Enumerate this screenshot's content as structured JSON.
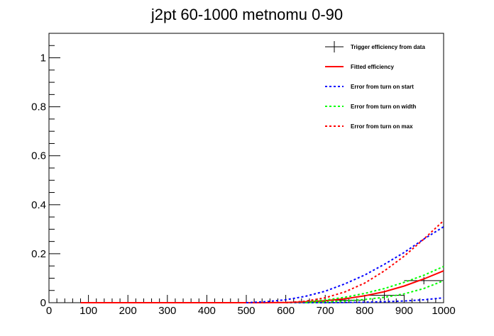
{
  "chart_data": {
    "type": "line",
    "title": "j2pt 60-1000 metnomu 0-90",
    "xlabel": "",
    "ylabel": "",
    "xlim": [
      0,
      1000
    ],
    "ylim": [
      0,
      1.1
    ],
    "x_ticks": [
      0,
      100,
      200,
      300,
      400,
      500,
      600,
      700,
      800,
      900,
      1000
    ],
    "y_ticks": [
      0,
      0.2,
      0.4,
      0.6,
      0.8,
      1
    ],
    "y_tick_labels": [
      "0",
      "0.2",
      "0.4",
      "0.6",
      "0.8",
      "1"
    ],
    "grid": false,
    "legend_position": "top-right",
    "series": [
      {
        "name": "Trigger efficiency from data",
        "kind": "points_with_errors",
        "color": "#000000",
        "points": [
          {
            "x": 80,
            "y": 0.0,
            "xerr": 10,
            "yerr": 0.0
          },
          {
            "x": 100,
            "y": 0.0,
            "xerr": 10,
            "yerr": 0.0
          },
          {
            "x": 120,
            "y": 0.0,
            "xerr": 10,
            "yerr": 0.0
          },
          {
            "x": 140,
            "y": 0.0,
            "xerr": 10,
            "yerr": 0.0
          },
          {
            "x": 160,
            "y": 0.0,
            "xerr": 10,
            "yerr": 0.0
          },
          {
            "x": 180,
            "y": 0.0,
            "xerr": 10,
            "yerr": 0.0
          },
          {
            "x": 200,
            "y": 0.0,
            "xerr": 10,
            "yerr": 0.0
          },
          {
            "x": 220,
            "y": 0.0,
            "xerr": 10,
            "yerr": 0.0
          },
          {
            "x": 240,
            "y": 0.0,
            "xerr": 10,
            "yerr": 0.0
          },
          {
            "x": 260,
            "y": 0.0,
            "xerr": 10,
            "yerr": 0.0
          },
          {
            "x": 280,
            "y": 0.0,
            "xerr": 10,
            "yerr": 0.0
          },
          {
            "x": 300,
            "y": 0.0,
            "xerr": 10,
            "yerr": 0.0
          },
          {
            "x": 320,
            "y": 0.0,
            "xerr": 10,
            "yerr": 0.0
          },
          {
            "x": 340,
            "y": 0.0,
            "xerr": 10,
            "yerr": 0.0
          },
          {
            "x": 360,
            "y": 0.0,
            "xerr": 10,
            "yerr": 0.0
          },
          {
            "x": 380,
            "y": 0.0,
            "xerr": 10,
            "yerr": 0.0
          },
          {
            "x": 400,
            "y": 0.0,
            "xerr": 10,
            "yerr": 0.0
          },
          {
            "x": 420,
            "y": 0.0,
            "xerr": 10,
            "yerr": 0.0
          },
          {
            "x": 440,
            "y": 0.0,
            "xerr": 10,
            "yerr": 0.0
          },
          {
            "x": 460,
            "y": 0.0,
            "xerr": 10,
            "yerr": 0.0
          },
          {
            "x": 480,
            "y": 0.0,
            "xerr": 10,
            "yerr": 0.0
          },
          {
            "x": 500,
            "y": 0.0,
            "xerr": 10,
            "yerr": 0.0
          },
          {
            "x": 525,
            "y": 0.0,
            "xerr": 15,
            "yerr": 0.0
          },
          {
            "x": 555,
            "y": 0.0,
            "xerr": 15,
            "yerr": 0.0
          },
          {
            "x": 585,
            "y": 0.0,
            "xerr": 15,
            "yerr": 0.0
          },
          {
            "x": 625,
            "y": 0.0,
            "xerr": 25,
            "yerr": 0.0
          },
          {
            "x": 675,
            "y": 0.005,
            "xerr": 25,
            "yerr": 0.005
          },
          {
            "x": 750,
            "y": 0.01,
            "xerr": 50,
            "yerr": 0.01
          },
          {
            "x": 850,
            "y": 0.03,
            "xerr": 50,
            "yerr": 0.02
          },
          {
            "x": 950,
            "y": 0.09,
            "xerr": 50,
            "yerr": 0.015
          }
        ]
      },
      {
        "name": "Fitted efficiency",
        "kind": "line",
        "color": "#ff0000",
        "dashed": false,
        "x": [
          80,
          500,
          550,
          600,
          650,
          700,
          750,
          800,
          850,
          900,
          950,
          1000
        ],
        "y": [
          0.0,
          0.0,
          0.0,
          0.001,
          0.003,
          0.008,
          0.016,
          0.028,
          0.045,
          0.068,
          0.097,
          0.13
        ]
      },
      {
        "name": "Error from turn on start",
        "kind": "line",
        "color": "#0000ff",
        "dashed": true,
        "x": [
          500,
          550,
          600,
          650,
          700,
          750,
          800,
          850,
          900,
          950,
          1000
        ],
        "y": [
          0.0,
          0.004,
          0.012,
          0.026,
          0.047,
          0.077,
          0.113,
          0.157,
          0.205,
          0.26,
          0.31
        ]
      },
      {
        "name": "Error from turn on start (lower)",
        "kind": "line",
        "color": "#0000ff",
        "dashed": true,
        "legend": false,
        "x": [
          600,
          650,
          700,
          750,
          800,
          850,
          900,
          950,
          1000
        ],
        "y": [
          0.0,
          0.0,
          0.0,
          0.001,
          0.002,
          0.004,
          0.007,
          0.012,
          0.02
        ]
      },
      {
        "name": "Error from turn on width",
        "kind": "line",
        "color": "#00ff00",
        "dashed": true,
        "x": [
          600,
          650,
          700,
          750,
          800,
          850,
          900,
          950,
          1000
        ],
        "y": [
          0.0,
          0.004,
          0.011,
          0.022,
          0.038,
          0.058,
          0.083,
          0.112,
          0.148
        ]
      },
      {
        "name": "Error from turn on width (lower)",
        "kind": "line",
        "color": "#00ff00",
        "dashed": true,
        "legend": false,
        "x": [
          650,
          700,
          750,
          800,
          850,
          900,
          950,
          1000
        ],
        "y": [
          0.0,
          0.003,
          0.007,
          0.013,
          0.022,
          0.036,
          0.058,
          0.09
        ]
      },
      {
        "name": "Error from turn on max",
        "kind": "line",
        "color": "#ff0000",
        "dashed": true,
        "x": [
          600,
          650,
          700,
          750,
          800,
          850,
          900,
          950,
          1000
        ],
        "y": [
          0.0,
          0.006,
          0.02,
          0.044,
          0.08,
          0.13,
          0.19,
          0.26,
          0.335
        ]
      }
    ]
  }
}
